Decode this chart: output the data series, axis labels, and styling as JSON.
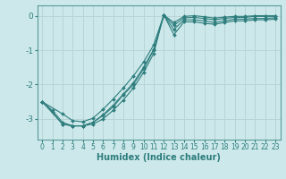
{
  "xlabel": "Humidex (Indice chaleur)",
  "xlim": [
    -0.5,
    23.5
  ],
  "ylim": [
    -3.6,
    0.3
  ],
  "xticks": [
    0,
    1,
    2,
    3,
    4,
    5,
    6,
    7,
    8,
    9,
    10,
    11,
    12,
    13,
    14,
    15,
    16,
    17,
    18,
    19,
    20,
    21,
    22,
    23
  ],
  "yticks": [
    0,
    -1,
    -2,
    -3
  ],
  "bg_color": "#cce8ea",
  "line_color": "#2e7d7d",
  "grid_color": "#b8d4d6",
  "line1_x": [
    0,
    1,
    2,
    3,
    4,
    5,
    6,
    7,
    8,
    9,
    10,
    11,
    12,
    13,
    14,
    15,
    16,
    17,
    18,
    19,
    20,
    21,
    22,
    23
  ],
  "line1_y": [
    -2.5,
    -2.8,
    -3.15,
    -3.2,
    -3.2,
    -3.15,
    -3.0,
    -2.75,
    -2.45,
    -2.1,
    -1.65,
    -1.1,
    0.02,
    -0.55,
    -0.18,
    -0.18,
    -0.22,
    -0.25,
    -0.2,
    -0.15,
    -0.15,
    -0.12,
    -0.12,
    -0.1
  ],
  "line2_x": [
    0,
    1,
    2,
    3,
    4,
    5,
    6,
    7,
    8,
    9,
    10,
    11,
    12,
    13,
    14,
    15,
    16,
    17,
    18,
    19,
    20,
    21,
    22,
    23
  ],
  "line2_y": [
    -2.5,
    -2.75,
    -3.1,
    -3.2,
    -3.2,
    -3.1,
    -2.9,
    -2.65,
    -2.3,
    -2.0,
    -1.55,
    -1.0,
    0.02,
    -0.4,
    -0.12,
    -0.12,
    -0.15,
    -0.2,
    -0.15,
    -0.1,
    -0.1,
    -0.08,
    -0.08,
    -0.06
  ],
  "line3_x": [
    0,
    2,
    3,
    4,
    5,
    6,
    7,
    8,
    9,
    10,
    11,
    12,
    13,
    14,
    15,
    16,
    17,
    18,
    19,
    20,
    21,
    22,
    23
  ],
  "line3_y": [
    -2.5,
    -3.15,
    -3.2,
    -3.2,
    -3.1,
    -2.88,
    -2.6,
    -2.28,
    -1.95,
    -1.5,
    -0.98,
    0.02,
    -0.28,
    -0.06,
    -0.05,
    -0.08,
    -0.12,
    -0.08,
    -0.05,
    -0.05,
    -0.02,
    -0.02,
    -0.02
  ],
  "line4_x": [
    0,
    2,
    3,
    4,
    5,
    6,
    7,
    8,
    9,
    10,
    11,
    12,
    13,
    14,
    15,
    16,
    17,
    18,
    19,
    20,
    21,
    22,
    23
  ],
  "line4_y": [
    -2.5,
    -2.85,
    -3.05,
    -3.08,
    -2.98,
    -2.72,
    -2.42,
    -2.1,
    -1.75,
    -1.35,
    -0.85,
    0.02,
    -0.2,
    -0.02,
    -0.0,
    -0.03,
    -0.07,
    -0.04,
    -0.02,
    -0.02,
    0.0,
    0.0,
    0.0
  ]
}
